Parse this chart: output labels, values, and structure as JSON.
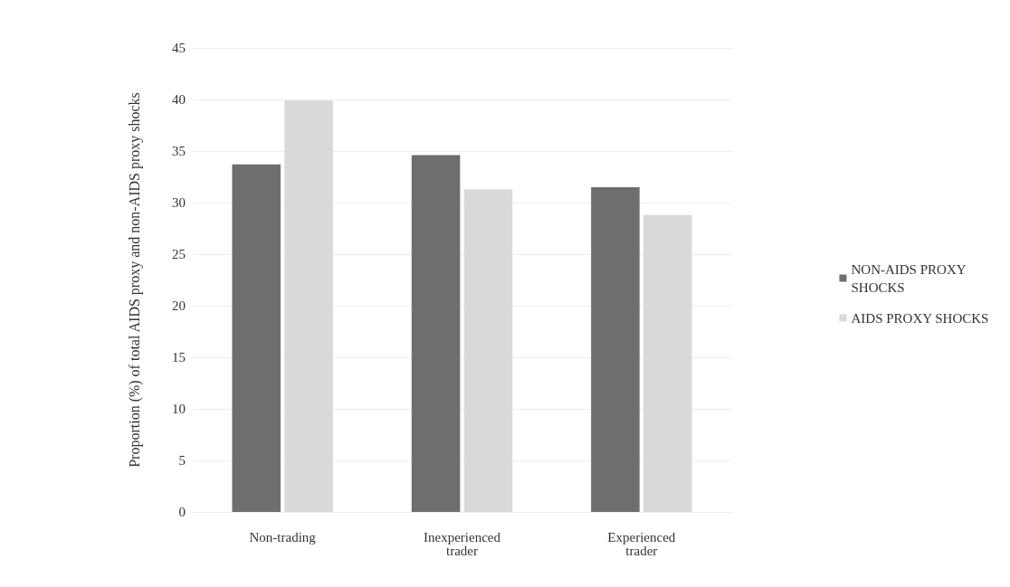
{
  "chart_data": {
    "type": "bar",
    "ylabel": "Proportion (%) of total AIDS proxy and non-AIDS proxy shocks",
    "categories": [
      "Non-trading",
      "Inexperienced\ntrader",
      "Experienced\ntrader"
    ],
    "series": [
      {
        "name": "NON-AIDS PROXY\nSHOCKS",
        "color": "#6e6e6e",
        "values": [
          33.7,
          34.6,
          31.5
        ]
      },
      {
        "name": "AIDS PROXY SHOCKS",
        "color": "#d9d9d9",
        "values": [
          39.9,
          31.3,
          28.8
        ]
      }
    ],
    "ylim": [
      0,
      45
    ],
    "yticks": [
      0,
      5,
      10,
      15,
      20,
      25,
      30,
      35,
      40,
      45
    ],
    "grid": "y",
    "legend": "right"
  }
}
